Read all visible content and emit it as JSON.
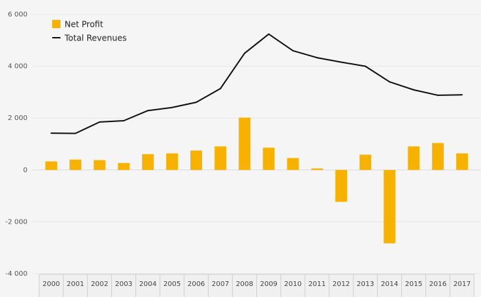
{
  "chart_data": {
    "type": "bar+line",
    "title": "",
    "xlabel": "",
    "ylabel": "",
    "ylim": [
      -4000,
      6000
    ],
    "yticks": [
      6000,
      4000,
      2000,
      0,
      -2000,
      -4000
    ],
    "ytick_labels": [
      "6 000",
      "4 000",
      "2 000",
      "0",
      "-2 000",
      "-4 000"
    ],
    "grid": true,
    "legend_position": "top-left",
    "categories": [
      "2000",
      "2001",
      "2002",
      "2003",
      "2004",
      "2005",
      "2006",
      "2007",
      "2008",
      "2009",
      "2010",
      "2011",
      "2012",
      "2013",
      "2014",
      "2015",
      "2016",
      "2017"
    ],
    "series": [
      {
        "name": "Net Profit",
        "type": "bar",
        "color": "#f7b200",
        "values": [
          330,
          400,
          380,
          270,
          610,
          640,
          750,
          910,
          2020,
          860,
          460,
          60,
          -1230,
          590,
          -2830,
          910,
          1040,
          640
        ]
      },
      {
        "name": "Total Revenues",
        "type": "line",
        "color": "#111111",
        "values": [
          1420,
          1410,
          1850,
          1900,
          2290,
          2410,
          2610,
          3140,
          4500,
          5240,
          4600,
          4330,
          4160,
          4000,
          3400,
          3090,
          2880,
          2900
        ]
      }
    ]
  }
}
